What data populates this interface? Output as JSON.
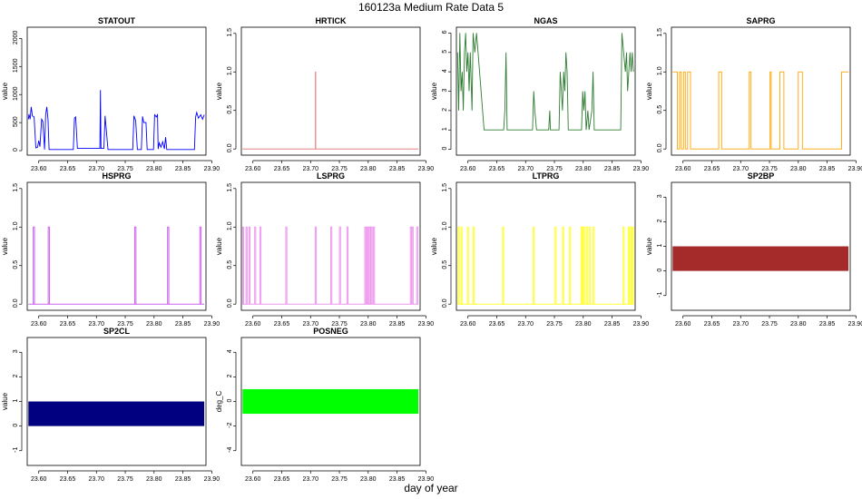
{
  "figure": {
    "title": "160123a   Medium Rate Data 5",
    "xlabel": "day of year"
  },
  "chart_data": [
    {
      "type": "line",
      "title": "STATOUT",
      "ylabel": "value",
      "color": "#0000FF",
      "xlim": [
        23.58,
        23.89
      ],
      "ylim": [
        -80,
        2200
      ],
      "yticks": [
        0,
        500,
        1000,
        1500,
        2000
      ],
      "xticks": [
        "23.60",
        "23.65",
        "23.70",
        "23.75",
        "23.80",
        "23.85",
        "23.90"
      ],
      "step": false,
      "points": [
        [
          23.582,
          560
        ],
        [
          23.583,
          650
        ],
        [
          23.585,
          560
        ],
        [
          23.587,
          780
        ],
        [
          23.589,
          620
        ],
        [
          23.592,
          600
        ],
        [
          23.595,
          50
        ],
        [
          23.598,
          60
        ],
        [
          23.6,
          180
        ],
        [
          23.602,
          70
        ],
        [
          23.605,
          560
        ],
        [
          23.607,
          520
        ],
        [
          23.61,
          20
        ],
        [
          23.612,
          640
        ],
        [
          23.614,
          780
        ],
        [
          23.616,
          560
        ],
        [
          23.618,
          20
        ],
        [
          23.66,
          20
        ],
        [
          23.662,
          580
        ],
        [
          23.664,
          600
        ],
        [
          23.667,
          40
        ],
        [
          23.706,
          40
        ],
        [
          23.707,
          1080
        ],
        [
          23.708,
          40
        ],
        [
          23.713,
          40
        ],
        [
          23.715,
          620
        ],
        [
          23.717,
          380
        ],
        [
          23.72,
          20
        ],
        [
          23.763,
          20
        ],
        [
          23.765,
          620
        ],
        [
          23.768,
          540
        ],
        [
          23.771,
          20
        ],
        [
          23.778,
          20
        ],
        [
          23.78,
          610
        ],
        [
          23.782,
          500
        ],
        [
          23.786,
          500
        ],
        [
          23.788,
          20
        ],
        [
          23.799,
          20
        ],
        [
          23.801,
          640
        ],
        [
          23.804,
          600
        ],
        [
          23.806,
          640
        ],
        [
          23.807,
          30
        ],
        [
          23.809,
          140
        ],
        [
          23.812,
          60
        ],
        [
          23.815,
          160
        ],
        [
          23.818,
          30
        ],
        [
          23.82,
          240
        ],
        [
          23.822,
          20
        ],
        [
          23.87,
          20
        ],
        [
          23.872,
          600
        ],
        [
          23.874,
          680
        ],
        [
          23.877,
          580
        ],
        [
          23.881,
          640
        ],
        [
          23.884,
          560
        ],
        [
          23.887,
          640
        ]
      ]
    },
    {
      "type": "line",
      "title": "HRTICK",
      "ylabel": "value",
      "color": "#E07070",
      "xlim": [
        23.58,
        23.89
      ],
      "ylim": [
        -0.08,
        1.58
      ],
      "yticks": [
        "0.0",
        "0.5",
        "1.0",
        "1.5"
      ],
      "xticks": [
        "23.60",
        "23.65",
        "23.70",
        "23.75",
        "23.80",
        "23.85",
        "23.90"
      ],
      "step": true,
      "points": [
        [
          23.582,
          0
        ],
        [
          23.7085,
          0
        ],
        [
          23.7085,
          1
        ],
        [
          23.7088,
          1
        ],
        [
          23.7088,
          0
        ],
        [
          23.887,
          0
        ]
      ]
    },
    {
      "type": "line",
      "title": "NGAS",
      "ylabel": "value",
      "color": "#2E7D32",
      "xlim": [
        23.58,
        23.89
      ],
      "ylim": [
        -0.3,
        6.3
      ],
      "yticks": [
        "0",
        "1",
        "2",
        "3",
        "4",
        "5",
        "6"
      ],
      "xticks": [
        "23.60",
        "23.65",
        "23.70",
        "23.75",
        "23.80",
        "23.85",
        "23.90"
      ],
      "step": true,
      "points": [
        [
          23.582,
          5
        ],
        [
          23.584,
          2
        ],
        [
          23.586,
          6
        ],
        [
          23.588,
          3
        ],
        [
          23.59,
          4
        ],
        [
          23.592,
          2
        ],
        [
          23.594,
          5
        ],
        [
          23.596,
          6
        ],
        [
          23.598,
          4
        ],
        [
          23.6,
          5
        ],
        [
          23.602,
          3
        ],
        [
          23.604,
          5
        ],
        [
          23.607,
          2
        ],
        [
          23.609,
          6
        ],
        [
          23.612,
          5
        ],
        [
          23.615,
          6
        ],
        [
          23.628,
          1
        ],
        [
          23.662,
          1
        ],
        [
          23.664,
          2
        ],
        [
          23.666,
          5
        ],
        [
          23.668,
          1
        ],
        [
          23.712,
          1
        ],
        [
          23.714,
          3
        ],
        [
          23.716,
          2
        ],
        [
          23.719,
          1
        ],
        [
          23.74,
          1
        ],
        [
          23.742,
          2
        ],
        [
          23.743,
          1
        ],
        [
          23.758,
          1
        ],
        [
          23.76,
          4
        ],
        [
          23.762,
          3
        ],
        [
          23.764,
          2
        ],
        [
          23.766,
          4
        ],
        [
          23.768,
          3
        ],
        [
          23.77,
          5
        ],
        [
          23.772,
          4
        ],
        [
          23.774,
          1
        ],
        [
          23.797,
          1
        ],
        [
          23.799,
          3
        ],
        [
          23.801,
          2
        ],
        [
          23.803,
          3
        ],
        [
          23.805,
          1
        ],
        [
          23.808,
          2
        ],
        [
          23.81,
          1
        ],
        [
          23.815,
          2
        ],
        [
          23.817,
          4
        ],
        [
          23.819,
          1
        ],
        [
          23.865,
          1
        ],
        [
          23.867,
          6
        ],
        [
          23.873,
          4
        ],
        [
          23.875,
          5
        ],
        [
          23.877,
          3
        ],
        [
          23.879,
          4
        ],
        [
          23.881,
          5
        ],
        [
          23.883,
          4
        ],
        [
          23.885,
          5
        ],
        [
          23.887,
          4
        ]
      ]
    },
    {
      "type": "line",
      "title": "SAPRG",
      "ylabel": "value",
      "color": "#FFA500",
      "xlim": [
        23.58,
        23.89
      ],
      "ylim": [
        -0.08,
        1.58
      ],
      "yticks": [
        "0.0",
        "0.5",
        "1.0",
        "1.5"
      ],
      "xticks": [
        "23.60",
        "23.65",
        "23.70",
        "23.75",
        "23.80",
        "23.85",
        "23.90"
      ],
      "step": true,
      "points": [
        [
          23.582,
          1
        ],
        [
          23.59,
          1
        ],
        [
          23.59,
          0
        ],
        [
          23.594,
          0
        ],
        [
          23.594,
          1
        ],
        [
          23.597,
          1
        ],
        [
          23.597,
          0
        ],
        [
          23.601,
          0
        ],
        [
          23.601,
          1
        ],
        [
          23.604,
          1
        ],
        [
          23.604,
          0
        ],
        [
          23.608,
          0
        ],
        [
          23.608,
          1
        ],
        [
          23.613,
          1
        ],
        [
          23.613,
          0
        ],
        [
          23.662,
          0
        ],
        [
          23.662,
          1
        ],
        [
          23.667,
          1
        ],
        [
          23.667,
          0
        ],
        [
          23.715,
          0
        ],
        [
          23.715,
          1
        ],
        [
          23.718,
          1
        ],
        [
          23.718,
          0
        ],
        [
          23.751,
          0
        ],
        [
          23.751,
          1
        ],
        [
          23.753,
          1
        ],
        [
          23.753,
          0
        ],
        [
          23.768,
          0
        ],
        [
          23.768,
          1
        ],
        [
          23.775,
          1
        ],
        [
          23.775,
          0
        ],
        [
          23.8,
          0
        ],
        [
          23.8,
          1
        ],
        [
          23.807,
          1
        ],
        [
          23.807,
          0
        ],
        [
          23.875,
          0
        ],
        [
          23.875,
          1
        ],
        [
          23.887,
          1
        ]
      ]
    },
    {
      "type": "line",
      "title": "HSPRG",
      "ylabel": "value",
      "color": "#CC66EE",
      "xlim": [
        23.58,
        23.89
      ],
      "ylim": [
        -0.08,
        1.58
      ],
      "yticks": [
        "0.0",
        "0.5",
        "1.0",
        "1.5"
      ],
      "xticks": [
        "23.60",
        "23.65",
        "23.70",
        "23.75",
        "23.80",
        "23.85",
        "23.90"
      ],
      "pulses": [
        23.5915,
        23.6175,
        23.7675,
        23.8245,
        23.8805
      ],
      "pulse_width": 0.0022
    },
    {
      "type": "line",
      "title": "LSPRG",
      "ylabel": "value",
      "color": "#EE99EE",
      "xlim": [
        23.58,
        23.89
      ],
      "ylim": [
        -0.08,
        1.58
      ],
      "yticks": [
        "0.0",
        "0.5",
        "1.0",
        "1.5"
      ],
      "xticks": [
        "23.60",
        "23.65",
        "23.70",
        "23.75",
        "23.80",
        "23.85",
        "23.90"
      ],
      "pulses": [
        23.583,
        23.589,
        23.594,
        23.604,
        23.613,
        23.658,
        23.709,
        23.736,
        23.751,
        23.764,
        23.795,
        23.798,
        23.8005,
        23.803,
        23.806,
        23.81,
        23.874,
        23.877,
        23.885
      ],
      "pulse_width": 0.0012
    },
    {
      "type": "line",
      "title": "LTPRG",
      "ylabel": "value",
      "color": "#FFFF33",
      "xlim": [
        23.58,
        23.89
      ],
      "ylim": [
        -0.08,
        1.58
      ],
      "yticks": [
        "0.0",
        "0.5",
        "1.0",
        "1.5"
      ],
      "xticks": [
        "23.60",
        "23.65",
        "23.70",
        "23.75",
        "23.80",
        "23.85",
        "23.90"
      ],
      "pulses": [
        23.584,
        23.589,
        23.6,
        23.61,
        23.661,
        23.714,
        23.752,
        23.765,
        23.777,
        23.797,
        23.799,
        23.801,
        23.806,
        23.811,
        23.818,
        23.87,
        23.879,
        23.883,
        23.886
      ],
      "pulse_width": 0.0012
    },
    {
      "type": "area",
      "title": "SP2BP",
      "ylabel": "value",
      "color": "#A52A2A",
      "xlim": [
        23.58,
        23.89
      ],
      "ylim": [
        -1.6,
        3.6
      ],
      "yticks": [
        "-1",
        "0",
        "1",
        "2",
        "3"
      ],
      "xticks": [
        "23.60",
        "23.65",
        "23.70",
        "23.75",
        "23.80",
        "23.85",
        "23.90"
      ],
      "band": [
        0,
        1
      ],
      "x_range": [
        23.582,
        23.887
      ]
    },
    {
      "type": "area",
      "title": "SP2CL",
      "ylabel": "value",
      "color": "#000080",
      "xlim": [
        23.58,
        23.89
      ],
      "ylim": [
        -1.6,
        3.6
      ],
      "yticks": [
        "-1",
        "0",
        "1",
        "2",
        "3"
      ],
      "xticks": [
        "23.60",
        "23.65",
        "23.70",
        "23.75",
        "23.80",
        "23.85",
        "23.90"
      ],
      "band": [
        0,
        1
      ],
      "x_range": [
        23.582,
        23.887
      ]
    },
    {
      "type": "area",
      "title": "POSNEG",
      "ylabel": "deg_C",
      "color": "#00FF00",
      "xlim": [
        23.58,
        23.89
      ],
      "ylim": [
        -5.2,
        5.2
      ],
      "yticks": [
        "-4",
        "-2",
        "0",
        "2",
        "4"
      ],
      "xticks": [
        "23.60",
        "23.65",
        "23.70",
        "23.75",
        "23.80",
        "23.85",
        "23.90"
      ],
      "band": [
        -1,
        1
      ],
      "x_range": [
        23.582,
        23.887
      ]
    }
  ]
}
